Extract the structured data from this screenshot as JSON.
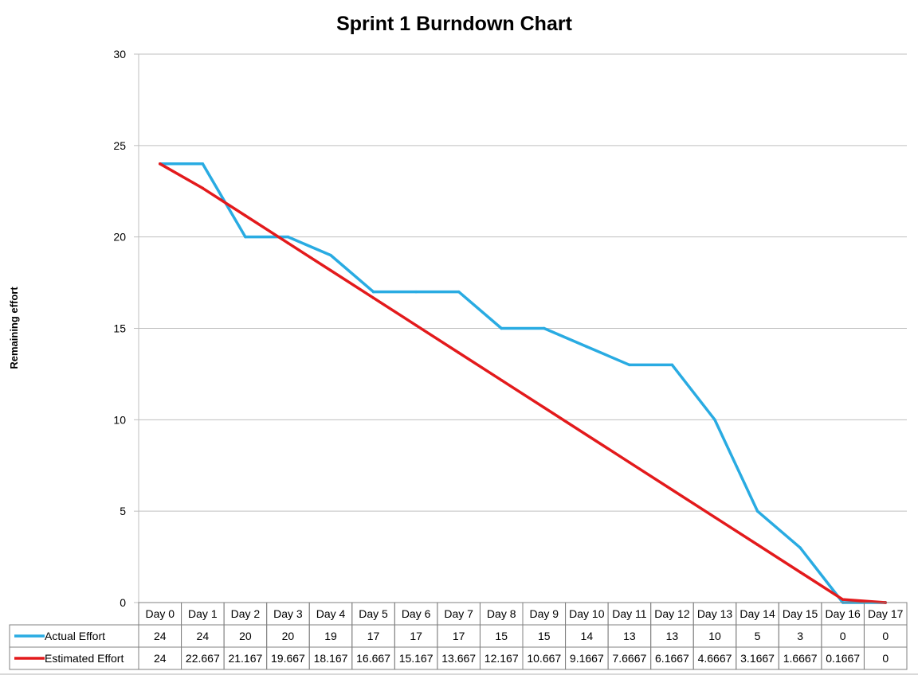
{
  "chart_data": {
    "type": "line",
    "title": "Sprint 1 Burndown Chart",
    "xlabel": "",
    "ylabel": "Remaining effort",
    "ylim": [
      0,
      30
    ],
    "yticks": [
      0,
      5,
      10,
      15,
      20,
      25,
      30
    ],
    "grid": true,
    "legend": "data-table",
    "categories": [
      "Day 0",
      "Day 1",
      "Day 2",
      "Day 3",
      "Day 4",
      "Day 5",
      "Day 6",
      "Day 7",
      "Day 8",
      "Day 9",
      "Day 10",
      "Day 11",
      "Day 12",
      "Day 13",
      "Day 14",
      "Day 15",
      "Day 16",
      "Day 17"
    ],
    "series": [
      {
        "name": "Actual Effort",
        "color": "#29abe2",
        "values": [
          24,
          24,
          20,
          20,
          19,
          17,
          17,
          17,
          15,
          15,
          14,
          13,
          13,
          10,
          5,
          3,
          0,
          0
        ],
        "labels": [
          "24",
          "24",
          "20",
          "20",
          "19",
          "17",
          "17",
          "17",
          "15",
          "15",
          "14",
          "13",
          "13",
          "10",
          "5",
          "3",
          "0",
          "0"
        ]
      },
      {
        "name": "Estimated Effort",
        "color": "#e31a1c",
        "values": [
          24,
          22.667,
          21.167,
          19.667,
          18.167,
          16.667,
          15.167,
          13.667,
          12.167,
          10.667,
          9.1667,
          7.6667,
          6.1667,
          4.6667,
          3.1667,
          1.6667,
          0.1667,
          0
        ],
        "labels": [
          "24",
          "22.667",
          "21.167",
          "19.667",
          "18.167",
          "16.667",
          "15.167",
          "13.667",
          "12.167",
          "10.667",
          "9.1667",
          "7.6667",
          "6.1667",
          "4.6667",
          "3.1667",
          "1.6667",
          "0.1667",
          "0"
        ]
      }
    ]
  }
}
